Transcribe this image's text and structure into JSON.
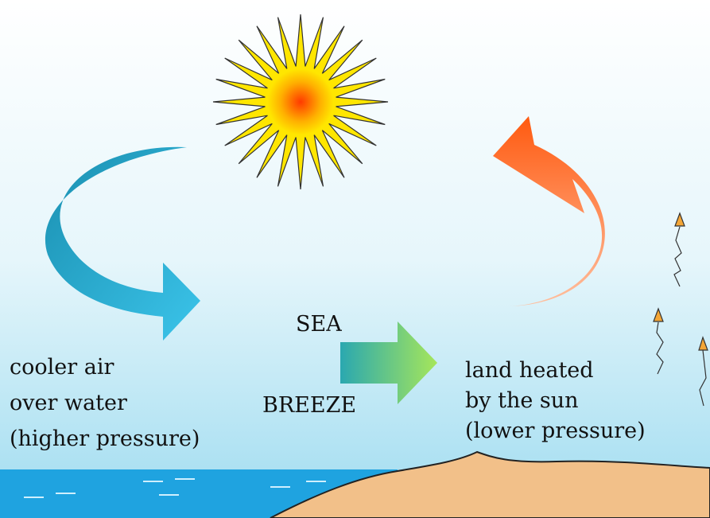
{
  "labels": {
    "sea": "SEA",
    "breeze": "BREEZE",
    "left": [
      "cooler air",
      "over water",
      "(higher pressure)"
    ],
    "right": [
      "land heated",
      "by the sun",
      "(lower pressure)"
    ]
  }
}
